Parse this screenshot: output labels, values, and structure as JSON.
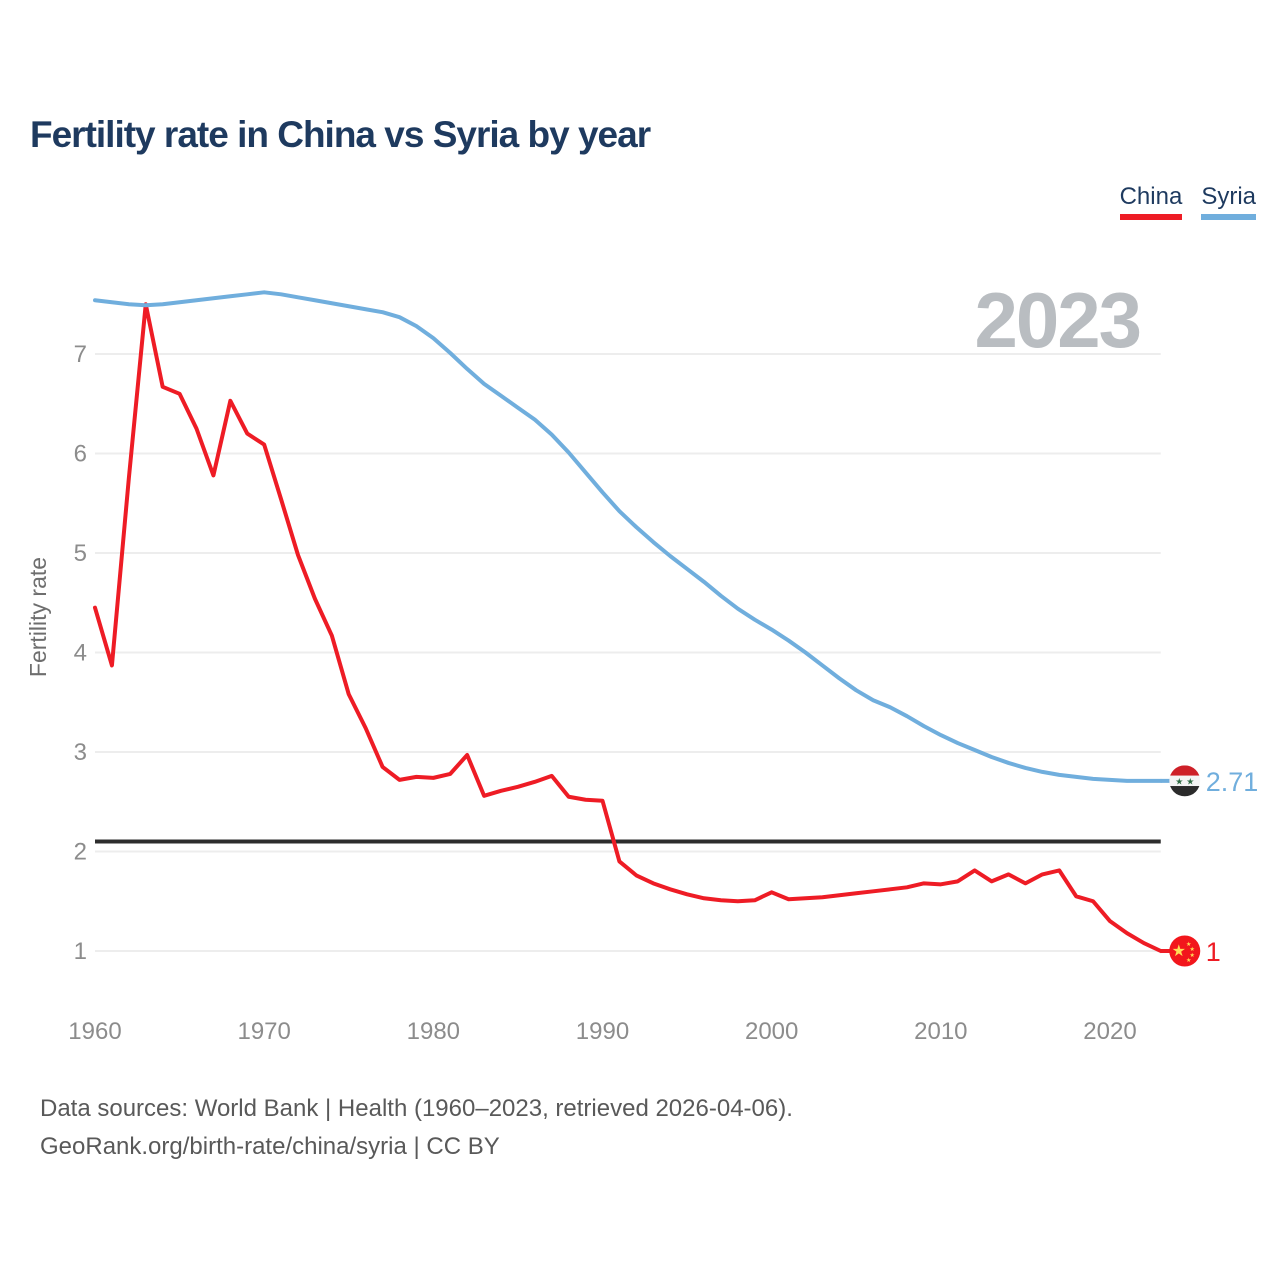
{
  "title": "Fertility rate in China vs Syria by year",
  "watermark_year": "2023",
  "legend": {
    "china": {
      "label": "China",
      "color": "#ee1c25"
    },
    "syria": {
      "label": "Syria",
      "color": "#70aedd"
    }
  },
  "y_axis": {
    "label": "Fertility rate",
    "ticks": [
      1,
      2,
      3,
      4,
      5,
      6,
      7
    ]
  },
  "x_axis": {
    "ticks": [
      1960,
      1970,
      1980,
      1990,
      2000,
      2010,
      2020
    ]
  },
  "reference_line": {
    "value": 2.1,
    "color": "#2d2d2d"
  },
  "end_labels": {
    "syria": {
      "value": "2.71",
      "color": "#70aedd",
      "flag": "syria-flag"
    },
    "china": {
      "value": "1",
      "color": "#ee1c25",
      "flag": "china-flag"
    }
  },
  "footer": {
    "line1": "Data sources: World Bank | Health (1960–2023, retrieved 2026-04-06).",
    "line2": "GeoRank.org/birth-rate/china/syria | CC BY"
  },
  "colors": {
    "background": "#ffffff",
    "title": "#1e3a5f",
    "axis_labels": "#8c8c8c",
    "y_axis_title": "#6e6e6e",
    "gridline": "#ededed",
    "watermark": "#b9bdc1",
    "footer": "#595959",
    "china_line": "#ee1c25",
    "syria_line": "#70aedd",
    "reference_line": "#2d2d2d"
  },
  "chart_data": {
    "type": "line",
    "title": "Fertility rate in China vs Syria by year",
    "xlabel": "",
    "ylabel": "Fertility rate",
    "x": [
      1960,
      1961,
      1962,
      1963,
      1964,
      1965,
      1966,
      1967,
      1968,
      1969,
      1970,
      1971,
      1972,
      1973,
      1974,
      1975,
      1976,
      1977,
      1978,
      1979,
      1980,
      1981,
      1982,
      1983,
      1984,
      1985,
      1986,
      1987,
      1988,
      1989,
      1990,
      1991,
      1992,
      1993,
      1994,
      1995,
      1996,
      1997,
      1998,
      1999,
      2000,
      2001,
      2002,
      2003,
      2004,
      2005,
      2006,
      2007,
      2008,
      2009,
      2010,
      2011,
      2012,
      2013,
      2014,
      2015,
      2016,
      2017,
      2018,
      2019,
      2020,
      2021,
      2022,
      2023
    ],
    "series": [
      {
        "name": "China",
        "color": "#ee1c25",
        "values": [
          4.45,
          3.87,
          5.75,
          7.5,
          6.67,
          6.6,
          6.25,
          5.78,
          6.53,
          6.2,
          6.09,
          5.54,
          4.98,
          4.54,
          4.17,
          3.58,
          3.24,
          2.85,
          2.72,
          2.75,
          2.74,
          2.78,
          2.97,
          2.56,
          2.61,
          2.65,
          2.7,
          2.76,
          2.55,
          2.52,
          2.51,
          1.9,
          1.76,
          1.68,
          1.62,
          1.57,
          1.53,
          1.51,
          1.5,
          1.51,
          1.59,
          1.52,
          1.53,
          1.54,
          1.56,
          1.58,
          1.6,
          1.62,
          1.64,
          1.68,
          1.67,
          1.7,
          1.81,
          1.7,
          1.77,
          1.68,
          1.77,
          1.81,
          1.55,
          1.5,
          1.3,
          1.18,
          1.08,
          1.0
        ]
      },
      {
        "name": "Syria",
        "color": "#70aedd",
        "values": [
          7.54,
          7.52,
          7.5,
          7.49,
          7.5,
          7.52,
          7.54,
          7.56,
          7.58,
          7.6,
          7.62,
          7.6,
          7.57,
          7.54,
          7.51,
          7.48,
          7.45,
          7.42,
          7.37,
          7.28,
          7.16,
          7.01,
          6.85,
          6.7,
          6.58,
          6.46,
          6.34,
          6.19,
          6.01,
          5.81,
          5.61,
          5.42,
          5.26,
          5.11,
          4.97,
          4.84,
          4.71,
          4.57,
          4.44,
          4.33,
          4.23,
          4.12,
          4.0,
          3.87,
          3.74,
          3.62,
          3.52,
          3.45,
          3.36,
          3.26,
          3.17,
          3.09,
          3.02,
          2.95,
          2.89,
          2.84,
          2.8,
          2.77,
          2.75,
          2.73,
          2.72,
          2.71,
          2.71,
          2.71
        ]
      }
    ],
    "xlim": [
      1960,
      2023
    ],
    "ylim": [
      1,
      7
    ],
    "grid": "horizontal-only",
    "legend_position": "top-right",
    "annotations": {
      "replacement_fertility_line": 2.1,
      "watermark": "2023",
      "syria_end_label": "2.71",
      "china_end_label": "1"
    }
  }
}
